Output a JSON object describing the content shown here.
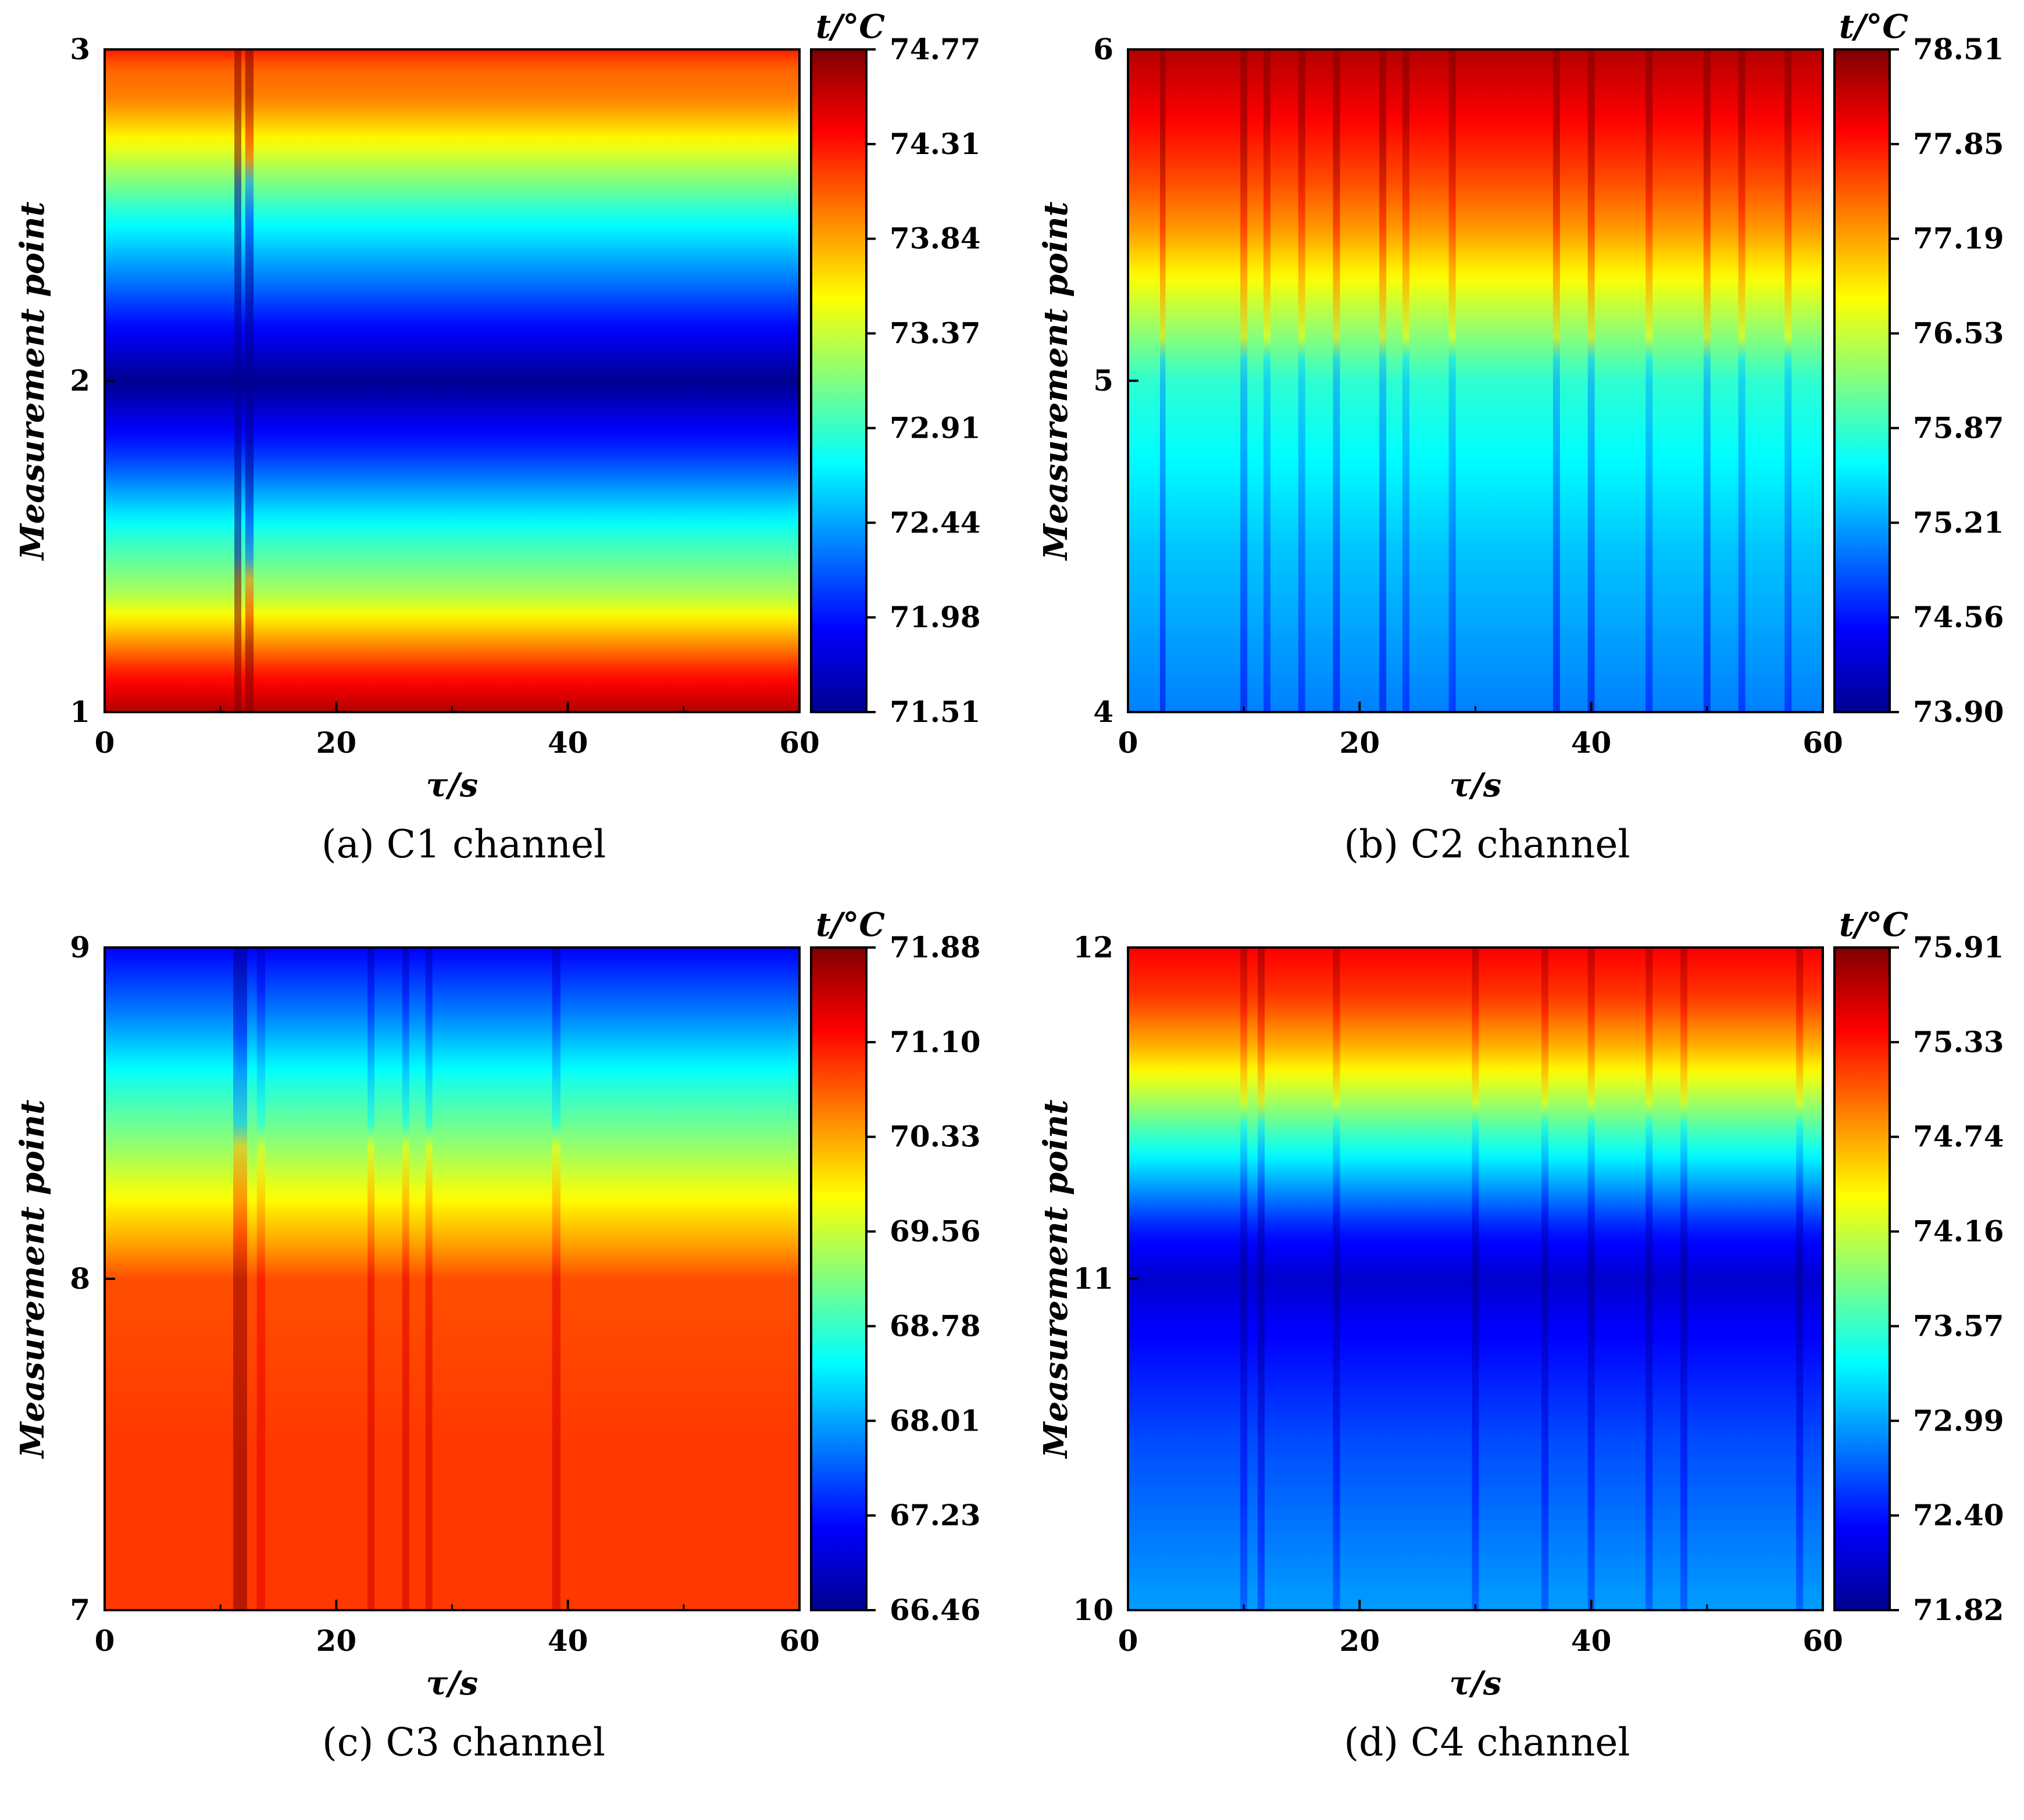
{
  "figure": {
    "colormap": [
      "#00008f",
      "#0000ff",
      "#0080ff",
      "#00ffff",
      "#80ff80",
      "#ffff00",
      "#ff8000",
      "#ff0000",
      "#800000"
    ],
    "panels": [
      {
        "id": "a",
        "caption": "(a) C1 channel",
        "chart_data": {
          "type": "heatmap",
          "title": "",
          "xlabel": "τ/s",
          "ylabel": "Measurement point",
          "xlim": [
            0,
            60
          ],
          "ylim": [
            1,
            3
          ],
          "x_ticks": [
            "0",
            "20",
            "40",
            "60"
          ],
          "y_ticks": [
            "1",
            "2",
            "3"
          ],
          "colorbar_label": "t/°C",
          "colorbar_ticks": [
            "74.77",
            "74.31",
            "73.84",
            "73.37",
            "72.91",
            "72.44",
            "71.98",
            "71.51"
          ],
          "colorbar_range": [
            71.51,
            74.77
          ],
          "row_profile": [
            [
              1.0,
              0.95
            ],
            [
              1.12,
              0.85
            ],
            [
              1.22,
              0.72
            ],
            [
              1.35,
              0.55
            ],
            [
              1.55,
              0.4
            ],
            [
              1.75,
              0.2
            ],
            [
              2.0,
              0.0
            ],
            [
              2.25,
              0.2
            ],
            [
              2.5,
              0.4
            ],
            [
              2.7,
              0.6
            ],
            [
              2.85,
              0.75
            ],
            [
              2.95,
              0.78
            ],
            [
              3.0,
              0.85
            ]
          ],
          "column_spikes": [
            [
              11.5,
              0.1,
              1.0
            ],
            [
              12.5,
              0.12,
              0.25
            ]
          ]
        }
      },
      {
        "id": "b",
        "caption": "(b) C2 channel",
        "chart_data": {
          "type": "heatmap",
          "title": "",
          "xlabel": "τ/s",
          "ylabel": "Measurement point",
          "xlim": [
            0,
            60
          ],
          "ylim": [
            4,
            6
          ],
          "x_ticks": [
            "0",
            "20",
            "40",
            "60"
          ],
          "y_ticks": [
            "4",
            "5",
            "6"
          ],
          "colorbar_label": "t/°C",
          "colorbar_ticks": [
            "78.51",
            "77.85",
            "77.19",
            "76.53",
            "75.87",
            "75.21",
            "74.56",
            "73.90"
          ],
          "colorbar_range": [
            73.9,
            78.51
          ],
          "row_profile": [
            [
              4.0,
              0.25
            ],
            [
              4.5,
              0.32
            ],
            [
              4.8,
              0.38
            ],
            [
              5.0,
              0.42
            ],
            [
              5.2,
              0.55
            ],
            [
              5.35,
              0.65
            ],
            [
              5.45,
              0.72
            ],
            [
              5.6,
              0.8
            ],
            [
              5.8,
              0.88
            ],
            [
              6.0,
              0.95
            ]
          ],
          "column_spikes": [
            [
              3,
              0.08,
              0.15
            ],
            [
              10,
              0.1,
              0.15
            ],
            [
              12,
              0.1,
              0.12
            ],
            [
              15,
              0.1,
              0.12
            ],
            [
              18,
              0.1,
              0.15
            ],
            [
              22,
              0.1,
              0.15
            ],
            [
              24,
              0.1,
              0.12
            ],
            [
              28,
              0.1,
              0.12
            ],
            [
              37,
              0.1,
              0.15
            ],
            [
              40,
              0.1,
              0.15
            ],
            [
              45,
              0.1,
              0.12
            ],
            [
              50,
              0.1,
              0.15
            ],
            [
              53,
              0.1,
              0.12
            ],
            [
              57,
              0.1,
              0.12
            ]
          ]
        }
      },
      {
        "id": "c",
        "caption": "(c) C3 channel",
        "chart_data": {
          "type": "heatmap",
          "title": "",
          "xlabel": "τ/s",
          "ylabel": "Measurement point",
          "xlim": [
            0,
            60
          ],
          "ylim": [
            7,
            9
          ],
          "x_ticks": [
            "0",
            "20",
            "40",
            "60"
          ],
          "y_ticks": [
            "7",
            "8",
            "9"
          ],
          "colorbar_label": "t/°C",
          "colorbar_ticks": [
            "71.88",
            "71.10",
            "70.33",
            "69.56",
            "68.78",
            "68.01",
            "67.23",
            "66.46"
          ],
          "colorbar_range": [
            66.46,
            71.88
          ],
          "row_profile": [
            [
              7.0,
              0.82
            ],
            [
              7.5,
              0.82
            ],
            [
              7.95,
              0.8
            ],
            [
              8.0,
              0.8
            ],
            [
              8.1,
              0.72
            ],
            [
              8.25,
              0.62
            ],
            [
              8.4,
              0.52
            ],
            [
              8.6,
              0.4
            ],
            [
              8.8,
              0.25
            ],
            [
              9.0,
              0.12
            ]
          ],
          "column_spikes": [
            [
              11.7,
              0.2,
              0.18
            ],
            [
              13.5,
              0.12,
              0.08
            ],
            [
              23,
              0.1,
              0.1
            ],
            [
              26,
              0.1,
              0.1
            ],
            [
              28,
              0.1,
              0.1
            ],
            [
              39,
              0.12,
              0.1
            ]
          ]
        }
      },
      {
        "id": "d",
        "caption": "(d) C4 channel",
        "chart_data": {
          "type": "heatmap",
          "title": "",
          "xlabel": "τ/s",
          "ylabel": "Measurement point",
          "xlim": [
            0,
            60
          ],
          "ylim": [
            10,
            12
          ],
          "x_ticks": [
            "0",
            "20",
            "40",
            "60"
          ],
          "y_ticks": [
            "10",
            "11",
            "12"
          ],
          "colorbar_label": "t/°C",
          "colorbar_ticks": [
            "75.91",
            "75.33",
            "74.74",
            "74.16",
            "73.57",
            "72.99",
            "72.40",
            "71.82"
          ],
          "colorbar_range": [
            71.82,
            75.91
          ],
          "row_profile": [
            [
              10.0,
              0.28
            ],
            [
              10.5,
              0.2
            ],
            [
              10.85,
              0.12
            ],
            [
              11.0,
              0.07
            ],
            [
              11.15,
              0.15
            ],
            [
              11.35,
              0.35
            ],
            [
              11.55,
              0.55
            ],
            [
              11.7,
              0.7
            ],
            [
              11.85,
              0.82
            ],
            [
              12.0,
              0.88
            ]
          ],
          "column_spikes": [
            [
              11.5,
              0.1,
              0.12
            ],
            [
              10,
              0.1,
              0.1
            ],
            [
              18,
              0.1,
              0.1
            ],
            [
              30,
              0.1,
              0.1
            ],
            [
              36,
              0.1,
              0.1
            ],
            [
              40,
              0.1,
              0.1
            ],
            [
              45,
              0.1,
              0.1
            ],
            [
              48,
              0.1,
              0.1
            ],
            [
              58,
              0.1,
              0.1
            ]
          ]
        }
      }
    ]
  }
}
